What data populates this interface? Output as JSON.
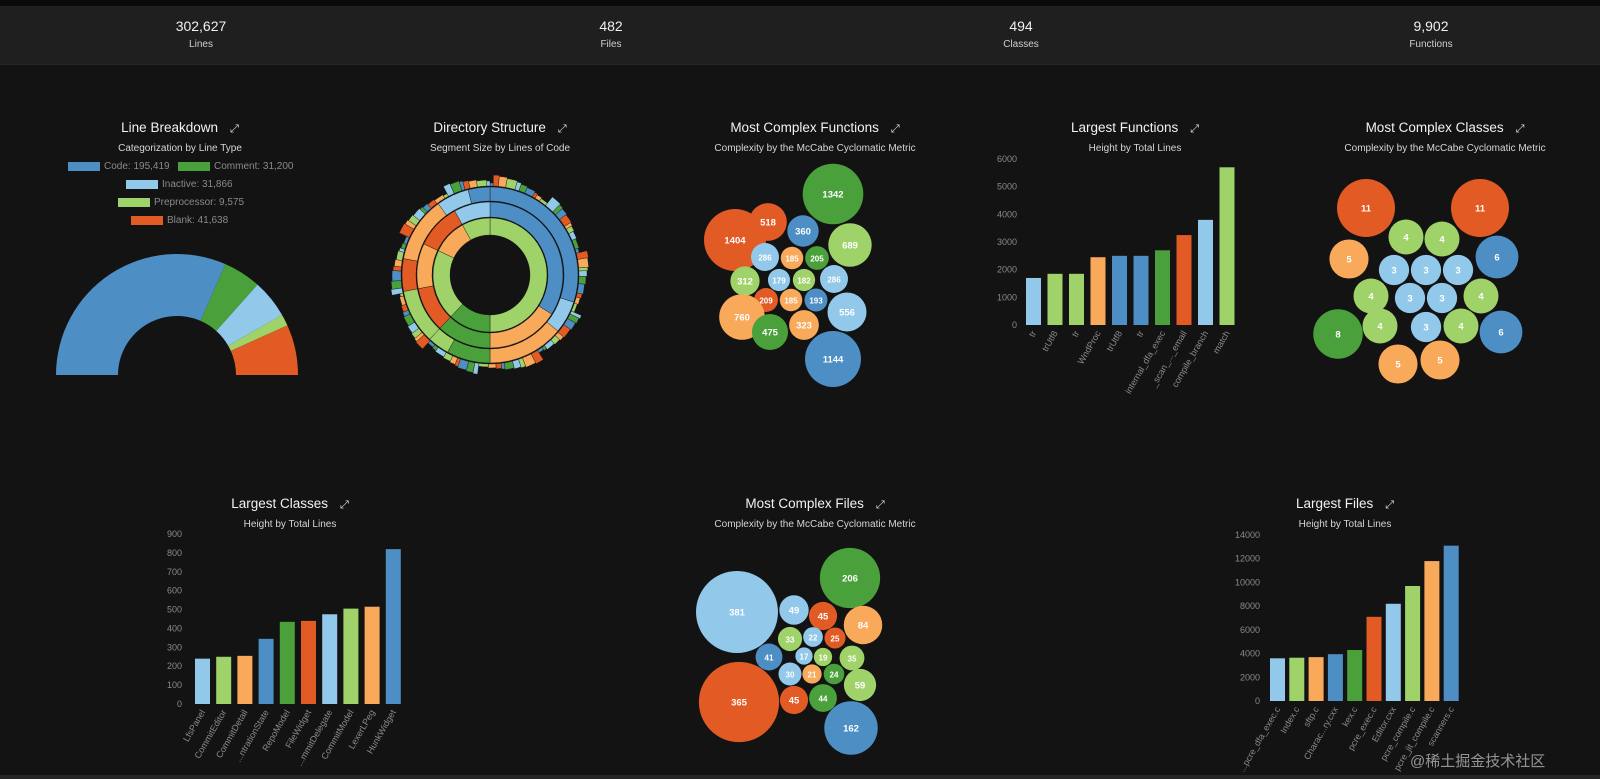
{
  "stats": [
    {
      "value": "302,627",
      "label": "Lines"
    },
    {
      "value": "482",
      "label": "Files"
    },
    {
      "value": "494",
      "label": "Classes"
    },
    {
      "value": "9,902",
      "label": "Functions"
    }
  ],
  "colors": {
    "blue": "#4d8ec4",
    "green": "#4aa03a",
    "lightblue": "#92c8ea",
    "lightgreen": "#9fd36a",
    "orange": "#f9a95a",
    "red": "#e25a24",
    "background": "#131313",
    "statbar": "#1f1f1f"
  },
  "icons": {
    "expand": "expand-icon"
  },
  "panels": {
    "line_breakdown": {
      "title": "Line Breakdown",
      "subtitle": "Categorization by Line Type",
      "expand_glyph": "⤢"
    },
    "directory": {
      "title": "Directory Structure",
      "subtitle": "Segment Size by Lines of Code",
      "expand_glyph": "⤢"
    },
    "complex_functions": {
      "title": "Most Complex Functions",
      "subtitle": "Complexity by the McCabe Cyclomatic Metric",
      "expand_glyph": "⤢"
    },
    "largest_functions": {
      "title": "Largest Functions",
      "subtitle": "Height by Total Lines",
      "expand_glyph": "⤢"
    },
    "complex_classes": {
      "title": "Most Complex Classes",
      "subtitle": "Complexity by the McCabe Cyclomatic Metric",
      "expand_glyph": "⤢"
    },
    "largest_classes": {
      "title": "Largest Classes",
      "subtitle": "Height by Total Lines",
      "expand_glyph": "⤢"
    },
    "complex_files": {
      "title": "Most Complex Files",
      "subtitle": "Complexity by the McCabe Cyclomatic Metric",
      "expand_glyph": "⤢"
    },
    "largest_files": {
      "title": "Largest Files",
      "subtitle": "Height by Total Lines",
      "expand_glyph": "⤢"
    }
  },
  "watermark": "@稀土掘金技术社区",
  "chart_data": [
    {
      "id": "line_breakdown",
      "type": "pie",
      "variant": "half-donut",
      "title": "Line Breakdown",
      "subtitle": "Categorization by Line Type",
      "slices": [
        {
          "name": "Code",
          "value": 195419,
          "label": "Code: 195,419",
          "color": "#4d8ec4"
        },
        {
          "name": "Comment",
          "value": 31200,
          "label": "Comment: 31,200",
          "color": "#4aa03a"
        },
        {
          "name": "Inactive",
          "value": 31866,
          "label": "Inactive: 31,866",
          "color": "#92c8ea"
        },
        {
          "name": "Preprocessor",
          "value": 9575,
          "label": "Preprocessor: 9,575",
          "color": "#9fd36a"
        },
        {
          "name": "Blank",
          "value": 41638,
          "label": "Blank: 41,638",
          "color": "#e25a24"
        }
      ],
      "legend": "top"
    },
    {
      "id": "directory",
      "type": "sunburst",
      "title": "Directory Structure",
      "subtitle": "Segment Size by Lines of Code",
      "levels": [
        [
          {
            "value": 50,
            "color": "#9fd36a"
          },
          {
            "value": 12,
            "color": "#4aa03a"
          },
          {
            "value": 20,
            "color": "#9fd36a"
          },
          {
            "value": 10,
            "color": "#f9a95a"
          },
          {
            "value": 8,
            "color": "#9fd36a"
          }
        ],
        [
          {
            "value": 34,
            "color": "#4d8ec4"
          },
          {
            "value": 16,
            "color": "#f9a95a"
          },
          {
            "value": 12,
            "color": "#4aa03a"
          },
          {
            "value": 10,
            "color": "#e25a24"
          },
          {
            "value": 10,
            "color": "#f9a95a"
          },
          {
            "value": 10,
            "color": "#e25a24"
          },
          {
            "value": 8,
            "color": "#92c8ea"
          }
        ],
        [
          {
            "value": 30,
            "color": "#4d8ec4"
          },
          {
            "value": 6,
            "color": "#92c8ea"
          },
          {
            "value": 14,
            "color": "#f9a95a"
          },
          {
            "value": 8,
            "color": "#4aa03a"
          },
          {
            "value": 4,
            "color": "#9fd36a"
          },
          {
            "value": 10,
            "color": "#9fd36a"
          },
          {
            "value": 6,
            "color": "#e25a24"
          },
          {
            "value": 12,
            "color": "#f9a95a"
          },
          {
            "value": 6,
            "color": "#92c8ea"
          },
          {
            "value": 4,
            "color": "#4d8ec4"
          }
        ]
      ]
    },
    {
      "id": "complex_functions",
      "type": "bubble",
      "title": "Most Complex Functions",
      "subtitle": "Complexity by the McCabe Cyclomatic Metric",
      "values": [
        1404,
        518,
        360,
        1342,
        689,
        286,
        185,
        205,
        312,
        179,
        182,
        286,
        209,
        185,
        193,
        556,
        760,
        323,
        475,
        1144
      ]
    },
    {
      "id": "largest_functions",
      "type": "bar",
      "title": "Largest Functions",
      "subtitle": "Height by Total Lines",
      "categories": [
        "tr",
        "trUtf8",
        "tr",
        "WndProc",
        "trUtf8",
        "tr",
        "internal_dfa_exec",
        "_scan_..._email",
        "compile_branch",
        "match"
      ],
      "values": [
        1700,
        1850,
        1850,
        2450,
        2500,
        2500,
        2700,
        3250,
        3800,
        5700
      ],
      "ylim": [
        0,
        6000
      ],
      "yticks": [
        0,
        1000,
        2000,
        3000,
        4000,
        5000,
        6000
      ]
    },
    {
      "id": "complex_classes",
      "type": "bubble",
      "title": "Most Complex Classes",
      "subtitle": "Complexity by the McCabe Cyclomatic Metric",
      "values": [
        11,
        11,
        4,
        4,
        5,
        3,
        3,
        3,
        6,
        4,
        3,
        3,
        4,
        8,
        4,
        3,
        4,
        6,
        5,
        5
      ]
    },
    {
      "id": "largest_classes",
      "type": "bar",
      "title": "Largest Classes",
      "subtitle": "Height by Total Lines",
      "categories": [
        "LfsPanel",
        "CommitEditor",
        "CommitDetail",
        "...ntrationState",
        "RepoModel",
        "FileWidget",
        "...mmitDelegate",
        "CommitModel",
        "LexerLPeg",
        "HunkWidget"
      ],
      "values": [
        240,
        250,
        255,
        345,
        435,
        440,
        475,
        505,
        515,
        820
      ],
      "ylim": [
        0,
        900
      ],
      "yticks": [
        0,
        100,
        200,
        300,
        400,
        500,
        600,
        700,
        800,
        900
      ]
    },
    {
      "id": "complex_files",
      "type": "bubble",
      "title": "Most Complex Files",
      "subtitle": "Complexity by the McCabe Cyclomatic Metric",
      "values": [
        381,
        49,
        45,
        206,
        84,
        33,
        22,
        25,
        41,
        17,
        19,
        35,
        30,
        21,
        24,
        59,
        365,
        45,
        44,
        162
      ]
    },
    {
      "id": "largest_files",
      "type": "bar",
      "title": "Largest Files",
      "subtitle": "Height by Total Lines",
      "categories": [
        "...pcre_dfa_exec.c",
        "Index.c",
        "sftp.c",
        "Charac...ry.cxx",
        "kex.c",
        "pcre_exec.c",
        "Editor.cxx",
        "pcre_compile.c",
        "pcre_jit_compile.c",
        "scanners.c"
      ],
      "values": [
        3600,
        3650,
        3700,
        3950,
        4300,
        7100,
        8200,
        9700,
        11800,
        13100
      ],
      "ylim": [
        0,
        14000
      ],
      "yticks": [
        0,
        2000,
        4000,
        6000,
        8000,
        10000,
        12000,
        14000
      ]
    }
  ]
}
